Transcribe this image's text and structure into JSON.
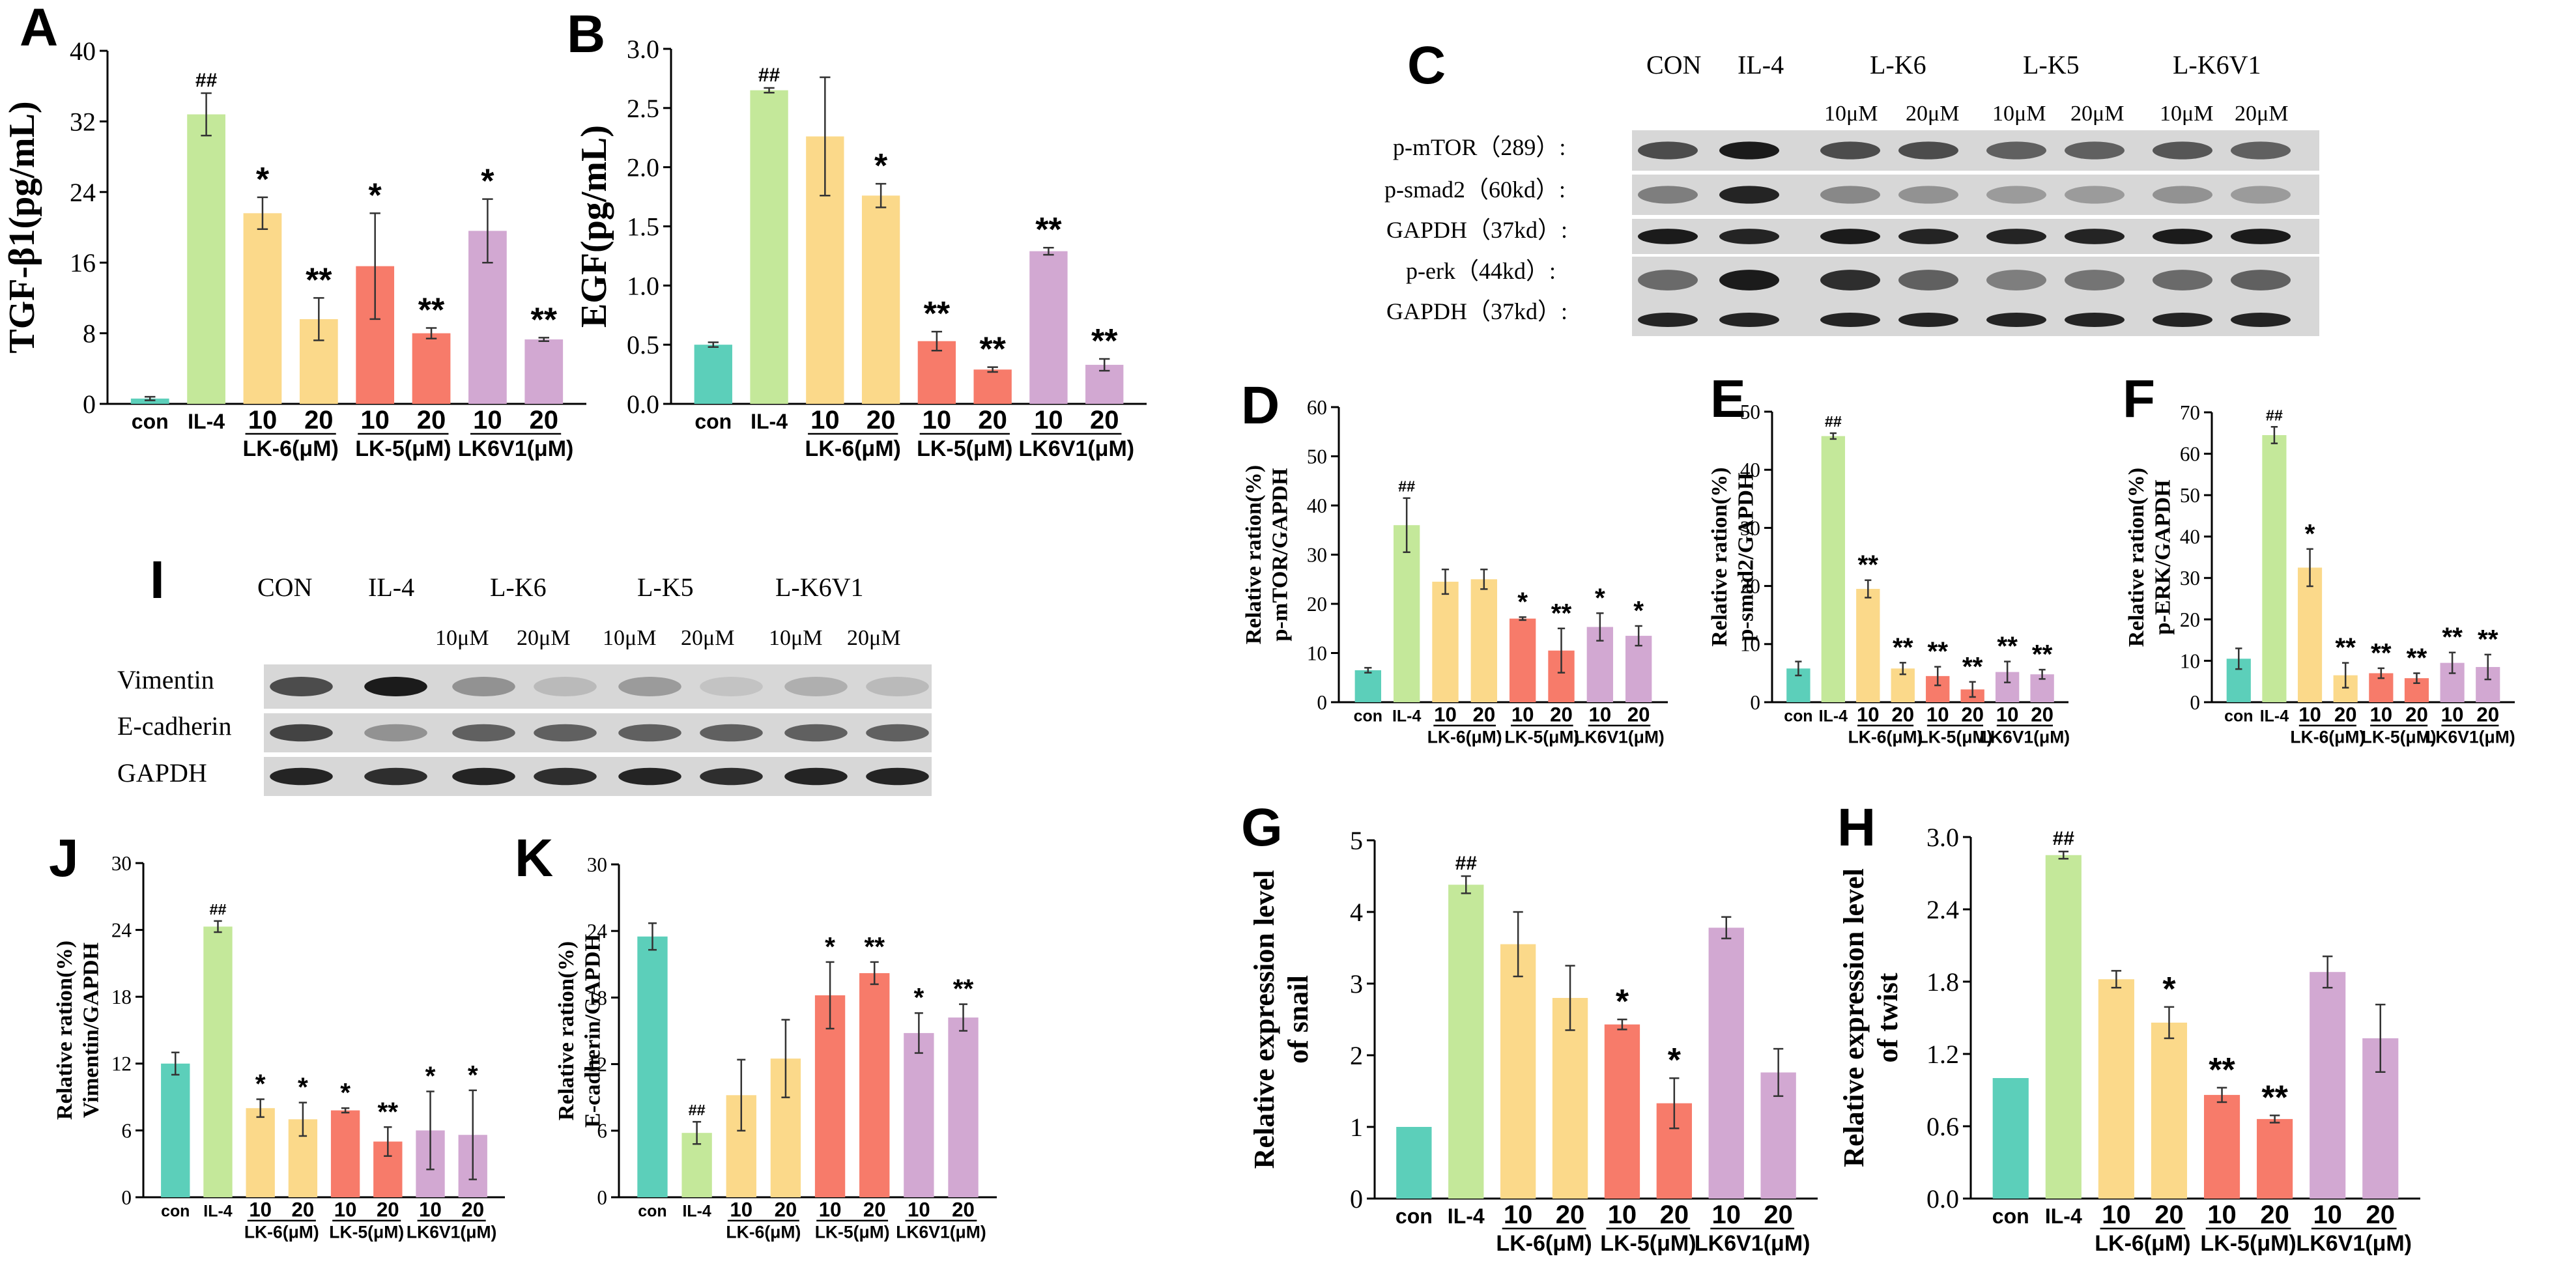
{
  "colors": {
    "con": "#5ccfba",
    "il4": "#c4e89a",
    "lk6": "#fbd98a",
    "lk5": "#f77b6a",
    "lk6v1": "#d2a8d2",
    "blot_bg": "#d7d7d7"
  },
  "chart_data": [
    {
      "id": "A",
      "type": "bar",
      "panel_label": "A",
      "ylabel": "TGF-β1(pg/mL)",
      "ylim": [
        0,
        40
      ],
      "yticks": [
        0,
        8,
        16,
        24,
        32,
        40
      ],
      "categories": [
        "con",
        "IL-4",
        "10",
        "20",
        "10",
        "20",
        "10",
        "20"
      ],
      "groups": [
        "LK-6(μM)",
        "LK-5(μM)",
        "LK6V1(μM)"
      ],
      "values": [
        0.6,
        32.8,
        21.6,
        9.6,
        15.6,
        8.0,
        19.6,
        7.3
      ],
      "errors": [
        0.2,
        2.4,
        1.8,
        2.4,
        6.0,
        0.6,
        3.6,
        0.2
      ],
      "annotations": [
        "",
        "##",
        "*",
        "**",
        "*",
        "**",
        "*",
        "**"
      ]
    },
    {
      "id": "B",
      "type": "bar",
      "panel_label": "B",
      "ylabel": "EGF(pg/mL)",
      "ylim": [
        0,
        3.0
      ],
      "yticks": [
        "0.0",
        "0.5",
        "1.0",
        "1.5",
        "2.0",
        "2.5",
        "3.0"
      ],
      "categories": [
        "con",
        "IL-4",
        "10",
        "20",
        "10",
        "20",
        "10",
        "20"
      ],
      "groups": [
        "LK-6(μM)",
        "LK-5(μM)",
        "LK6V1(μM)"
      ],
      "values": [
        0.5,
        2.65,
        2.26,
        1.76,
        0.53,
        0.29,
        1.29,
        0.33
      ],
      "errors": [
        0.02,
        0.02,
        0.5,
        0.1,
        0.08,
        0.02,
        0.03,
        0.05
      ],
      "annotations": [
        "",
        "##",
        "",
        "*",
        "**",
        "**",
        "**",
        "**"
      ]
    },
    {
      "id": "D",
      "type": "bar",
      "panel_label": "D",
      "ylabel": [
        "Relative ration(%)",
        "p-mTOR/GAPDH"
      ],
      "ylim": [
        0,
        60
      ],
      "yticks": [
        0,
        10,
        20,
        30,
        40,
        50,
        60
      ],
      "categories": [
        "con",
        "IL-4",
        "10",
        "20",
        "10",
        "20",
        "10",
        "20"
      ],
      "groups": [
        "LK-6(μM)",
        "LK-5(μM)",
        "LK6V1(μM)"
      ],
      "values": [
        6.5,
        36.0,
        24.5,
        25.0,
        17.0,
        10.5,
        15.3,
        13.5
      ],
      "errors": [
        0.5,
        5.5,
        2.5,
        2.0,
        0.3,
        4.5,
        2.8,
        2.0
      ],
      "annotations": [
        "",
        "##",
        "",
        "",
        "*",
        "**",
        "*",
        "*"
      ]
    },
    {
      "id": "E",
      "type": "bar",
      "panel_label": "E",
      "ylabel": [
        "Relative ration(%)",
        "p-smad2/GAPDH"
      ],
      "ylim": [
        0,
        50
      ],
      "yticks": [
        0,
        10,
        20,
        30,
        40,
        50
      ],
      "categories": [
        "con",
        "IL-4",
        "10",
        "20",
        "10",
        "20",
        "10",
        "20"
      ],
      "groups": [
        "LK-6(μM)",
        "LK-5(μM)",
        "LK6V1(μM)"
      ],
      "values": [
        5.8,
        45.8,
        19.5,
        5.8,
        4.5,
        2.2,
        5.2,
        4.8
      ],
      "errors": [
        1.2,
        0.5,
        1.5,
        1.0,
        1.6,
        1.3,
        1.8,
        0.8
      ],
      "annotations": [
        "",
        "##",
        "**",
        "**",
        "**",
        "**",
        "**",
        "**"
      ]
    },
    {
      "id": "F",
      "type": "bar",
      "panel_label": "F",
      "ylabel": [
        "Relative ration(%)",
        "p-ERK/GAPDH"
      ],
      "ylim": [
        0,
        70
      ],
      "yticks": [
        0,
        10,
        20,
        30,
        40,
        50,
        60,
        70
      ],
      "categories": [
        "con",
        "IL-4",
        "10",
        "20",
        "10",
        "20",
        "10",
        "20"
      ],
      "groups": [
        "LK-6(μM)",
        "LK-5(μM)",
        "LK6V1(μM)"
      ],
      "values": [
        10.5,
        64.5,
        32.5,
        6.5,
        7.0,
        5.8,
        9.5,
        8.5
      ],
      "errors": [
        2.5,
        2.0,
        4.5,
        3.0,
        1.2,
        1.2,
        2.5,
        3.0
      ],
      "annotations": [
        "",
        "##",
        "*",
        "**",
        "**",
        "**",
        "**",
        "**"
      ]
    },
    {
      "id": "G",
      "type": "bar",
      "panel_label": "G",
      "ylabel": [
        "Relative expression level",
        "of  snail"
      ],
      "ylim": [
        0,
        5
      ],
      "yticks": [
        0,
        1,
        2,
        3,
        4,
        5
      ],
      "categories": [
        "con",
        "IL-4",
        "10",
        "20",
        "10",
        "20",
        "10",
        "20"
      ],
      "groups": [
        "LK-6(μM)",
        "LK-5(μM)",
        "LK6V1(μM)"
      ],
      "values": [
        1.0,
        4.38,
        3.55,
        2.8,
        2.43,
        1.33,
        3.78,
        1.76
      ],
      "errors": [
        0.0,
        0.12,
        0.45,
        0.45,
        0.07,
        0.35,
        0.15,
        0.33
      ],
      "annotations": [
        "",
        "##",
        "",
        "",
        "*",
        "*",
        "",
        ""
      ]
    },
    {
      "id": "H",
      "type": "bar",
      "panel_label": "H",
      "ylabel": [
        "Relative expression level",
        "of  twist"
      ],
      "ylim": [
        0,
        3.0
      ],
      "yticks": [
        "0.0",
        "0.6",
        "1.2",
        "1.8",
        "2.4",
        "3.0"
      ],
      "categories": [
        "con",
        "IL-4",
        "10",
        "20",
        "10",
        "20",
        "10",
        "20"
      ],
      "groups": [
        "LK-6(μM)",
        "LK-5(μM)",
        "LK6V1(μM)"
      ],
      "values": [
        1.0,
        2.85,
        1.82,
        1.46,
        0.86,
        0.66,
        1.88,
        1.33
      ],
      "errors": [
        0.0,
        0.03,
        0.07,
        0.13,
        0.06,
        0.03,
        0.13,
        0.28
      ],
      "annotations": [
        "",
        "##",
        "",
        "*",
        "**",
        "**",
        "",
        ""
      ]
    },
    {
      "id": "J",
      "type": "bar",
      "panel_label": "J",
      "ylabel": [
        "Relative ration(%)",
        "Vimentin/GAPDH"
      ],
      "ylim": [
        0,
        30
      ],
      "yticks": [
        0,
        6,
        12,
        18,
        24,
        30
      ],
      "categories": [
        "con",
        "IL-4",
        "10",
        "20",
        "10",
        "20",
        "10",
        "20"
      ],
      "groups": [
        "LK-6(μM)",
        "LK-5(μM)",
        "LK6V1(μM)"
      ],
      "values": [
        12.0,
        24.3,
        8.0,
        7.0,
        7.8,
        5.0,
        6.0,
        5.6
      ],
      "errors": [
        1.0,
        0.5,
        0.8,
        1.5,
        0.2,
        1.3,
        3.5,
        4.0
      ],
      "annotations": [
        "",
        "##",
        "*",
        "*",
        "*",
        "**",
        "*",
        "*"
      ]
    },
    {
      "id": "K",
      "type": "bar",
      "panel_label": "K",
      "ylabel": [
        "Relative ration(%)",
        "E-cadherin/GAPDH"
      ],
      "ylim": [
        0,
        30
      ],
      "yticks": [
        0,
        6,
        12,
        18,
        24,
        30
      ],
      "categories": [
        "con",
        "IL-4",
        "10",
        "20",
        "10",
        "20",
        "10",
        "20"
      ],
      "groups": [
        "LK-6(μM)",
        "LK-5(μM)",
        "LK6V1(μM)"
      ],
      "values": [
        23.5,
        5.8,
        9.2,
        12.5,
        18.2,
        20.2,
        14.8,
        16.2
      ],
      "errors": [
        1.2,
        1.0,
        3.2,
        3.5,
        3.0,
        1.0,
        1.8,
        1.2
      ],
      "annotations": [
        "",
        "##",
        "",
        "",
        "*",
        "**",
        "*",
        "**"
      ]
    }
  ],
  "blots": {
    "C": {
      "panel_label": "C",
      "header": [
        "CON",
        "IL-4",
        "L-K6",
        "L-K5",
        "L-K6V1"
      ],
      "doses": [
        "10μM",
        "20μM",
        "10μM",
        "20μM",
        "10μM",
        "20μM"
      ],
      "rows": [
        "p-mTOR（289）:",
        "p-smad2（60kd）:",
        "GAPDH（37kd）:",
        "p-erk（44kd）:",
        "GAPDH（37kd）:"
      ]
    },
    "I": {
      "panel_label": "I",
      "header": [
        "CON",
        "IL-4",
        "L-K6",
        "L-K5",
        "L-K6V1"
      ],
      "doses": [
        "10μM",
        "20μM",
        "10μM",
        "20μM",
        "10μM",
        "20μM"
      ],
      "rows": [
        "Vimentin",
        "E-cadherin",
        "GAPDH"
      ]
    }
  }
}
